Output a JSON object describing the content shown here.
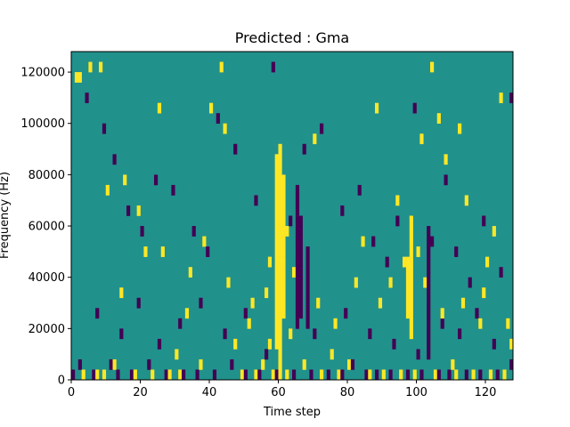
{
  "chart_data": {
    "type": "heatmap",
    "title": "Predicted : Gma",
    "xlabel": "Time step",
    "ylabel": "Frequency (Hz)",
    "xlim": [
      0,
      128
    ],
    "ylim": [
      0,
      128000
    ],
    "xticks": [
      0,
      20,
      40,
      60,
      80,
      100,
      120
    ],
    "yticks": [
      0,
      20000,
      40000,
      60000,
      80000,
      100000,
      120000
    ],
    "xtick_labels": [
      "0",
      "20",
      "40",
      "60",
      "80",
      "100",
      "120"
    ],
    "ytick_labels": [
      "0",
      "20000",
      "40000",
      "60000",
      "80000",
      "100000",
      "120000"
    ],
    "cell_size": {
      "time_steps": 1,
      "frequency_hz": 4000
    },
    "colormap": "viridis",
    "value_levels": [
      -1,
      0,
      1
    ],
    "colors": {
      "low": "#440154",
      "mid": "#21918c",
      "high": "#fde725"
    },
    "background_value": 0,
    "high_columns": [
      {
        "time_step": 60,
        "freq_from_hz": 0,
        "freq_to_hz": 92000
      },
      {
        "time_step": 59,
        "freq_from_hz": 12000,
        "freq_to_hz": 88000
      },
      {
        "time_step": 61,
        "freq_from_hz": 24000,
        "freq_to_hz": 80000
      },
      {
        "time_step": 98,
        "freq_from_hz": 16000,
        "freq_to_hz": 64000
      },
      {
        "time_step": 97,
        "freq_from_hz": 24000,
        "freq_to_hz": 48000
      }
    ],
    "low_columns": [
      {
        "time_step": 65,
        "freq_from_hz": 20000,
        "freq_to_hz": 76000
      },
      {
        "time_step": 66,
        "freq_from_hz": 24000,
        "freq_to_hz": 64000
      },
      {
        "time_step": 68,
        "freq_from_hz": 20000,
        "freq_to_hz": 52000
      },
      {
        "time_step": 103,
        "freq_from_hz": 8000,
        "freq_to_hz": 60000
      }
    ],
    "high_cells": [
      [
        1,
        116000
      ],
      [
        2,
        116000
      ],
      [
        5,
        120000
      ],
      [
        8,
        120000
      ],
      [
        10,
        72000
      ],
      [
        15,
        76000
      ],
      [
        21,
        48000
      ],
      [
        25,
        104000
      ],
      [
        30,
        8000
      ],
      [
        33,
        24000
      ],
      [
        40,
        104000
      ],
      [
        43,
        120000
      ],
      [
        44,
        96000
      ],
      [
        47,
        12000
      ],
      [
        52,
        28000
      ],
      [
        55,
        4000
      ],
      [
        56,
        32000
      ],
      [
        57,
        12000
      ],
      [
        62,
        56000
      ],
      [
        64,
        40000
      ],
      [
        70,
        92000
      ],
      [
        75,
        8000
      ],
      [
        80,
        4000
      ],
      [
        84,
        52000
      ],
      [
        88,
        104000
      ],
      [
        92,
        36000
      ],
      [
        94,
        68000
      ],
      [
        100,
        48000
      ],
      [
        101,
        92000
      ],
      [
        104,
        120000
      ],
      [
        106,
        100000
      ],
      [
        108,
        84000
      ],
      [
        110,
        4000
      ],
      [
        112,
        96000
      ],
      [
        114,
        68000
      ],
      [
        118,
        20000
      ],
      [
        120,
        44000
      ],
      [
        122,
        56000
      ],
      [
        124,
        108000
      ],
      [
        127,
        12000
      ],
      [
        3,
        0
      ],
      [
        7,
        0
      ],
      [
        9,
        0
      ],
      [
        12,
        4000
      ],
      [
        18,
        0
      ],
      [
        23,
        0
      ],
      [
        28,
        0
      ],
      [
        31,
        0
      ],
      [
        37,
        4000
      ],
      [
        49,
        0
      ],
      [
        53,
        0
      ],
      [
        58,
        0
      ],
      [
        62,
        0
      ],
      [
        67,
        4000
      ],
      [
        72,
        0
      ],
      [
        77,
        0
      ],
      [
        86,
        0
      ],
      [
        90,
        0
      ],
      [
        95,
        0
      ],
      [
        99,
        0
      ],
      [
        105,
        0
      ],
      [
        111,
        0
      ],
      [
        116,
        0
      ],
      [
        121,
        0
      ],
      [
        125,
        0
      ],
      [
        14,
        32000
      ],
      [
        19,
        64000
      ],
      [
        26,
        48000
      ],
      [
        34,
        40000
      ],
      [
        38,
        52000
      ],
      [
        45,
        36000
      ],
      [
        51,
        20000
      ],
      [
        57,
        44000
      ],
      [
        63,
        16000
      ],
      [
        71,
        28000
      ],
      [
        76,
        20000
      ],
      [
        82,
        36000
      ],
      [
        89,
        28000
      ],
      [
        96,
        44000
      ],
      [
        102,
        36000
      ],
      [
        107,
        24000
      ],
      [
        113,
        28000
      ],
      [
        119,
        32000
      ],
      [
        126,
        20000
      ]
    ],
    "low_cells": [
      [
        0,
        0
      ],
      [
        2,
        4000
      ],
      [
        6,
        0
      ],
      [
        11,
        4000
      ],
      [
        13,
        0
      ],
      [
        17,
        0
      ],
      [
        22,
        4000
      ],
      [
        27,
        0
      ],
      [
        32,
        0
      ],
      [
        36,
        0
      ],
      [
        41,
        0
      ],
      [
        46,
        4000
      ],
      [
        50,
        0
      ],
      [
        54,
        0
      ],
      [
        59,
        0
      ],
      [
        64,
        0
      ],
      [
        69,
        0
      ],
      [
        74,
        0
      ],
      [
        78,
        0
      ],
      [
        81,
        4000
      ],
      [
        85,
        0
      ],
      [
        88,
        0
      ],
      [
        92,
        0
      ],
      [
        97,
        0
      ],
      [
        101,
        0
      ],
      [
        106,
        0
      ],
      [
        109,
        0
      ],
      [
        114,
        0
      ],
      [
        118,
        0
      ],
      [
        123,
        0
      ],
      [
        127,
        4000
      ],
      [
        4,
        108000
      ],
      [
        9,
        96000
      ],
      [
        12,
        84000
      ],
      [
        16,
        64000
      ],
      [
        20,
        56000
      ],
      [
        24,
        76000
      ],
      [
        29,
        72000
      ],
      [
        35,
        56000
      ],
      [
        39,
        48000
      ],
      [
        42,
        100000
      ],
      [
        47,
        88000
      ],
      [
        53,
        68000
      ],
      [
        58,
        120000
      ],
      [
        63,
        60000
      ],
      [
        67,
        88000
      ],
      [
        72,
        96000
      ],
      [
        78,
        64000
      ],
      [
        83,
        72000
      ],
      [
        87,
        52000
      ],
      [
        91,
        44000
      ],
      [
        94,
        60000
      ],
      [
        99,
        104000
      ],
      [
        104,
        52000
      ],
      [
        108,
        76000
      ],
      [
        111,
        48000
      ],
      [
        115,
        36000
      ],
      [
        119,
        60000
      ],
      [
        124,
        40000
      ],
      [
        127,
        108000
      ],
      [
        7,
        24000
      ],
      [
        14,
        16000
      ],
      [
        19,
        28000
      ],
      [
        25,
        12000
      ],
      [
        31,
        20000
      ],
      [
        37,
        28000
      ],
      [
        44,
        16000
      ],
      [
        50,
        24000
      ],
      [
        56,
        8000
      ],
      [
        70,
        16000
      ],
      [
        79,
        24000
      ],
      [
        86,
        16000
      ],
      [
        93,
        12000
      ],
      [
        100,
        8000
      ],
      [
        107,
        20000
      ],
      [
        112,
        16000
      ],
      [
        117,
        24000
      ],
      [
        122,
        12000
      ]
    ]
  }
}
